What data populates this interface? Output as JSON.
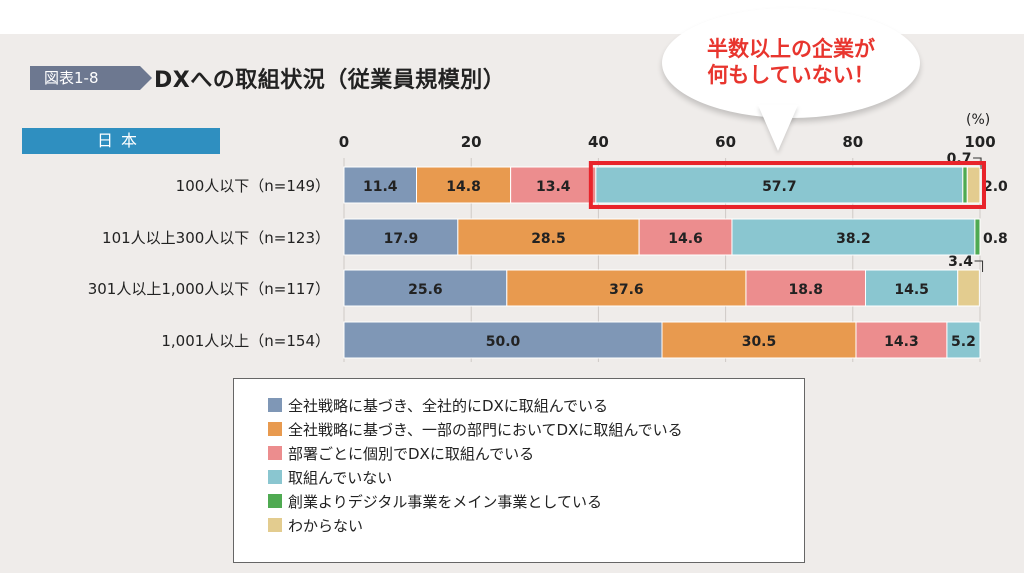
{
  "figure_badge": "図表1-8",
  "title": "DXへの取組状況（従業員規模別）",
  "region_tab": "日本",
  "callout": [
    "半数以上の企業が",
    "何もしていない！"
  ],
  "unit": "(%)",
  "chart_data": {
    "type": "bar",
    "orientation": "horizontal",
    "stacked": true,
    "xlim": [
      0,
      100
    ],
    "xticks": [
      0,
      20,
      40,
      60,
      80,
      100
    ],
    "categories": [
      "100人以下（n=149）",
      "101人以上300人以下（n=123）",
      "301人以上1,000人以下（n=117）",
      "1,001人以上（n=154）"
    ],
    "series": [
      {
        "name": "全社戦略に基づき、全社的にDXに取組んでいる",
        "color": "#7f97b6",
        "values": [
          11.4,
          17.9,
          25.6,
          50.0
        ]
      },
      {
        "name": "全社戦略に基づき、一部の部門においてDXに取組んでいる",
        "color": "#e89a4f",
        "values": [
          14.8,
          28.5,
          37.6,
          30.5
        ]
      },
      {
        "name": "部署ごとに個別でDXに取組んでいる",
        "color": "#ec8d8e",
        "values": [
          13.4,
          14.6,
          18.8,
          14.3
        ]
      },
      {
        "name": "取組んでいない",
        "color": "#8ac6d0",
        "values": [
          57.7,
          38.2,
          14.5,
          5.2
        ]
      },
      {
        "name": "創業よりデジタル事業をメイン事業としている",
        "color": "#4faa52",
        "values": [
          0.7,
          0.8,
          0.0,
          0.0
        ]
      },
      {
        "name": "わからない",
        "color": "#e3cc8f",
        "values": [
          2.0,
          0.0,
          3.4,
          0.0
        ]
      }
    ],
    "bar_labels": [
      [
        "11.4",
        "14.8",
        "13.4",
        "57.7",
        "0.7",
        "2.0"
      ],
      [
        "17.9",
        "28.5",
        "14.6",
        "38.2",
        "0.8",
        ""
      ],
      [
        "25.6",
        "37.6",
        "18.8",
        "14.5",
        "",
        "3.4"
      ],
      [
        "50.0",
        "30.5",
        "14.3",
        "5.2",
        "",
        ""
      ]
    ],
    "highlight_row": 0,
    "highlight_color": "#e8242b"
  }
}
